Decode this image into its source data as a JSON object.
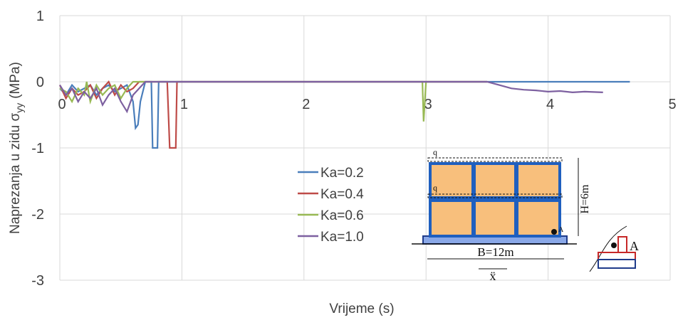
{
  "chart_data": {
    "type": "line",
    "xlabel": "Vrijeme  (s)",
    "ylabel": {
      "main": "Naprezanja  u zidu σ",
      "subscript": "yy",
      "unit": "(MPa)"
    },
    "xlim": [
      0,
      5
    ],
    "xticks": [
      0,
      1,
      2,
      3,
      4,
      5
    ],
    "ylim": [
      -3,
      1
    ],
    "yticks": [
      -3,
      -2,
      -1,
      0,
      1
    ],
    "grid": true,
    "legend": "center",
    "series": [
      {
        "name": "Ka=0.2",
        "color": "#4a7ebb",
        "x": [
          0,
          0.05,
          0.1,
          0.15,
          0.2,
          0.25,
          0.3,
          0.35,
          0.4,
          0.45,
          0.5,
          0.55,
          0.6,
          0.62,
          0.64,
          0.66,
          0.7,
          0.75,
          0.76,
          0.8,
          0.81,
          0.85,
          0.95,
          1,
          2,
          3,
          4,
          4.67
        ],
        "values": [
          -0.1,
          -0.2,
          -0.05,
          -0.15,
          -0.1,
          -0.05,
          -0.2,
          -0.1,
          -0.05,
          -0.15,
          -0.1,
          -0.05,
          -0.3,
          -0.7,
          -0.65,
          -0.3,
          0,
          0,
          -1,
          -1,
          0,
          0,
          0,
          0,
          0,
          0,
          0,
          0
        ]
      },
      {
        "name": "Ka=0.4",
        "color": "#be4b48",
        "x": [
          0,
          0.05,
          0.1,
          0.15,
          0.2,
          0.25,
          0.3,
          0.35,
          0.4,
          0.45,
          0.5,
          0.55,
          0.6,
          0.65,
          0.7,
          0.8,
          0.88,
          0.9,
          0.95,
          0.96,
          1,
          2,
          3,
          3.5
        ],
        "values": [
          -0.05,
          -0.25,
          -0.1,
          -0.2,
          -0.15,
          -0.05,
          -0.25,
          -0.1,
          0,
          -0.2,
          -0.05,
          -0.15,
          -0.1,
          0,
          0,
          0,
          0,
          -1,
          -1,
          0,
          0,
          0,
          0,
          0
        ]
      },
      {
        "name": "Ka=0.6",
        "color": "#98b954",
        "x": [
          0,
          0.05,
          0.1,
          0.15,
          0.2,
          0.22,
          0.25,
          0.3,
          0.35,
          0.4,
          0.45,
          0.5,
          0.55,
          0.6,
          0.65,
          0.7,
          1,
          2,
          2.97,
          2.98,
          3,
          3.5
        ],
        "values": [
          -0.1,
          -0.15,
          -0.3,
          -0.1,
          -0.2,
          0,
          -0.3,
          -0.05,
          -0.2,
          -0.1,
          -0.05,
          -0.25,
          -0.1,
          0,
          0,
          0,
          0,
          0,
          0,
          -0.6,
          0,
          0
        ]
      },
      {
        "name": "Ka=1.0",
        "color": "#7d60a0",
        "x": [
          0,
          0.05,
          0.1,
          0.15,
          0.2,
          0.25,
          0.3,
          0.35,
          0.4,
          0.45,
          0.5,
          0.55,
          0.6,
          0.65,
          0.7,
          0.75,
          0.8,
          0.85,
          0.9,
          0.95,
          1,
          2,
          3,
          3.5,
          3.6,
          3.7,
          3.8,
          3.9,
          4,
          4.1,
          4.2,
          4.3,
          4.45
        ],
        "values": [
          -0.05,
          -0.2,
          -0.1,
          -0.3,
          -0.15,
          -0.25,
          -0.1,
          -0.35,
          -0.2,
          -0.1,
          -0.3,
          -0.45,
          -0.2,
          -0.1,
          0,
          0,
          0,
          0,
          0,
          0,
          0,
          0,
          0,
          0,
          -0.05,
          -0.1,
          -0.12,
          -0.13,
          -0.15,
          -0.14,
          -0.16,
          -0.15,
          -0.16
        ]
      }
    ]
  },
  "inset": {
    "load_top": "q",
    "load_mid": "q",
    "height": "H=6m",
    "width": "B=12m",
    "point": "A",
    "detail_point": "A",
    "excitation": "ẍ"
  }
}
